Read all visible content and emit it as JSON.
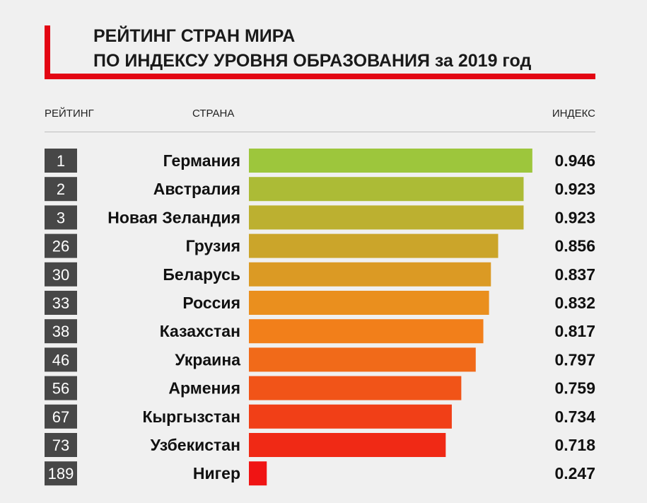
{
  "header": {
    "title_line1": "РЕЙТИНГ СТРАН МИРА",
    "title_line2": "ПО ИНДЕКСУ УРОВНЯ ОБРАЗОВАНИЯ за 2019 год",
    "col_rank": "РЕЙТИНГ",
    "col_country": "СТРАНА",
    "col_index": "ИНДЕКС"
  },
  "colors": {
    "accent": "#e30613",
    "rank_box": "#474747",
    "bar_top": "#9dc63c",
    "bar_mid": "#f28a1b",
    "bar_bottom": "#f01414"
  },
  "chart_data": {
    "type": "bar",
    "orientation": "horizontal",
    "title": "РЕЙТИНГ СТРАН МИРА ПО ИНДЕКСУ УРОВНЯ ОБРАЗОВАНИЯ за 2019 год",
    "xlabel": "ИНДЕКС",
    "ylabel": "СТРАНА",
    "xlim": [
      0.2,
      0.95
    ],
    "categories": [
      "Германия",
      "Австралия",
      "Новая Зеландия",
      "Грузия",
      "Беларусь",
      "Россия",
      "Казахстан",
      "Украина",
      "Армения",
      "Кыргызстан",
      "Узбекистан",
      "Нигер"
    ],
    "ranks": [
      "1",
      "2",
      "3",
      "26",
      "30",
      "33",
      "38",
      "46",
      "56",
      "67",
      "73",
      "189"
    ],
    "values": [
      0.946,
      0.923,
      0.923,
      0.856,
      0.837,
      0.832,
      0.817,
      0.797,
      0.759,
      0.734,
      0.718,
      0.247
    ],
    "value_labels": [
      "0.946",
      "0.923",
      "0.923",
      "0.856",
      "0.837",
      "0.832",
      "0.817",
      "0.797",
      "0.759",
      "0.734",
      "0.718",
      "0.247"
    ],
    "grid": false,
    "legend": "none"
  }
}
